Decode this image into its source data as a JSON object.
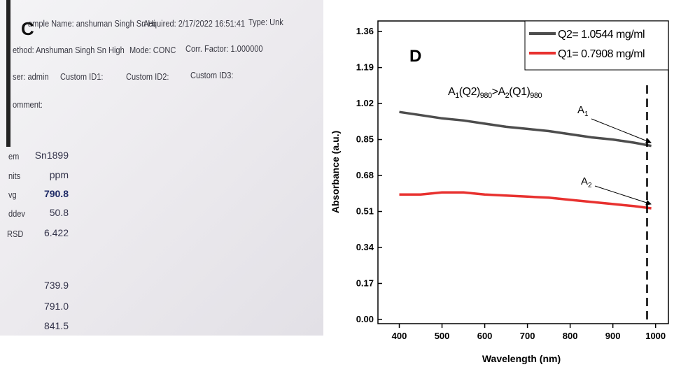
{
  "photo": {
    "panel_label": "C",
    "header": [
      "ample Name: anshuman Singh Sn Hi",
      "Acquired: 2/17/2022 16:51:41",
      "Type: Unk",
      "ethod: Anshuman Singh Sn High",
      "Mode: CONC",
      "Corr. Factor: 1.000000",
      "ser: admin",
      "Custom ID1:",
      "Custom ID2:",
      "Custom ID3:",
      "omment:"
    ],
    "table": [
      [
        "em",
        "Sn1899"
      ],
      [
        "nits",
        "ppm"
      ],
      [
        "vg",
        "790.8"
      ],
      [
        "ddev",
        "50.8"
      ],
      [
        "RSD",
        "6.422"
      ]
    ],
    "replicates": [
      "739.9",
      "791.0",
      "841.5"
    ]
  },
  "chart_data": {
    "type": "line",
    "panel_label": "D",
    "x_label": "Wavelength (nm)",
    "y_label": "Absorbance (a.u.)",
    "x": [
      400,
      450,
      500,
      550,
      600,
      650,
      700,
      750,
      800,
      850,
      900,
      950,
      990
    ],
    "series": [
      {
        "name": "Q2= 1.0544 mg/ml",
        "color": "#4d4d4d",
        "values": [
          0.98,
          0.965,
          0.95,
          0.94,
          0.925,
          0.91,
          0.9,
          0.89,
          0.875,
          0.86,
          0.85,
          0.835,
          0.82
        ]
      },
      {
        "name": "Q1= 0.7908 mg/ml",
        "color": "#e8312f",
        "values": [
          0.59,
          0.59,
          0.6,
          0.6,
          0.59,
          0.585,
          0.58,
          0.575,
          0.565,
          0.555,
          0.545,
          0.535,
          0.525
        ]
      }
    ],
    "xlim": [
      350,
      1030
    ],
    "ylim": [
      -0.02,
      1.41
    ],
    "xticks": [
      400,
      500,
      600,
      700,
      800,
      900,
      1000
    ],
    "yticks": [
      {
        "value": 0,
        "label": "0.00"
      },
      0.17,
      0.34,
      0.51,
      0.68,
      0.85,
      1.02,
      1.19,
      1.36
    ],
    "vline": 980,
    "legend": "upper right",
    "annotation": [
      "A",
      "1",
      "(Q2)",
      "980",
      ">A",
      "2",
      "(Q1)",
      "980"
    ],
    "point_labels": [
      [
        "A",
        "1"
      ],
      [
        "A",
        "2"
      ]
    ]
  }
}
